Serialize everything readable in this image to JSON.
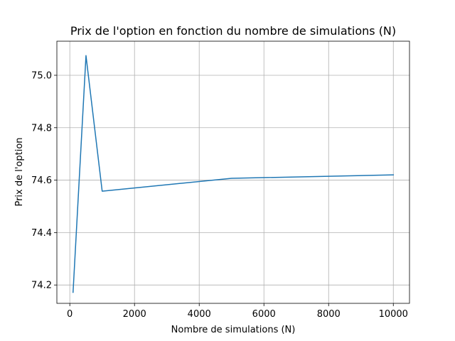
{
  "chart_data": {
    "type": "line",
    "title": "Prix de l'option en fonction du nombre de simulations (N)",
    "xlabel": "Nombre de simulations (N)",
    "ylabel": "Prix de l'option",
    "xlim": [
      -400,
      10500
    ],
    "ylim": [
      74.13,
      75.13
    ],
    "xticks": [
      0,
      2000,
      4000,
      6000,
      8000,
      10000
    ],
    "yticks": [
      74.2,
      74.4,
      74.6,
      74.8,
      75.0
    ],
    "xtick_labels": [
      "0",
      "2000",
      "4000",
      "6000",
      "8000",
      "10000"
    ],
    "ytick_labels": [
      "74.2",
      "74.4",
      "74.6",
      "74.8",
      "75.0"
    ],
    "grid": true,
    "series": [
      {
        "color": "#1f77b4",
        "x": [
          100,
          500,
          1000,
          5000,
          10000
        ],
        "y": [
          74.172,
          75.075,
          74.558,
          74.607,
          74.62
        ]
      }
    ]
  }
}
